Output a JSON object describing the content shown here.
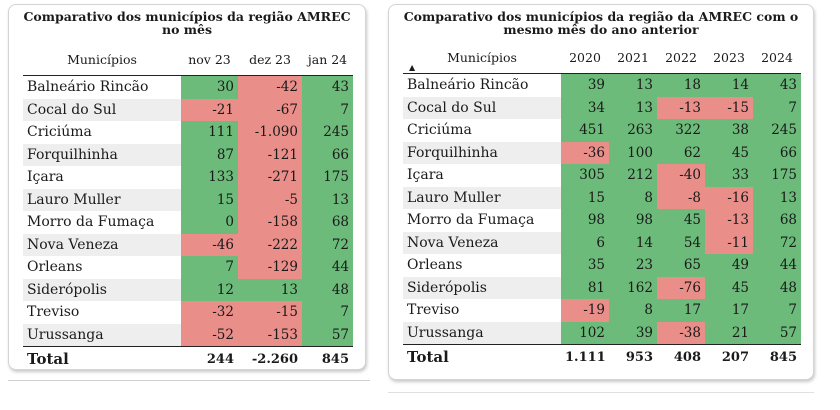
{
  "left": {
    "title": "Comparativo dos municípios da região AMREC\nno mês",
    "headers": [
      "Municípios",
      "nov 23",
      "dez 23",
      "jan 24"
    ],
    "rows": [
      {
        "name": "Balneário Rincão",
        "values": [
          "30",
          "-42",
          "43"
        ]
      },
      {
        "name": "Cocal do Sul",
        "values": [
          "-21",
          "-67",
          "7"
        ]
      },
      {
        "name": "Criciúma",
        "values": [
          "111",
          "-1.090",
          "245"
        ]
      },
      {
        "name": "Forquilhinha",
        "values": [
          "87",
          "-121",
          "66"
        ]
      },
      {
        "name": "Içara",
        "values": [
          "133",
          "-271",
          "175"
        ]
      },
      {
        "name": "Lauro Muller",
        "values": [
          "15",
          "-5",
          "13"
        ]
      },
      {
        "name": "Morro da Fumaça",
        "values": [
          "0",
          "-158",
          "68"
        ]
      },
      {
        "name": "Nova Veneza",
        "values": [
          "-46",
          "-222",
          "72"
        ]
      },
      {
        "name": "Orleans",
        "values": [
          "7",
          "-129",
          "44"
        ]
      },
      {
        "name": "Siderópolis",
        "values": [
          "12",
          "13",
          "48"
        ]
      },
      {
        "name": "Treviso",
        "values": [
          "-32",
          "-15",
          "7"
        ]
      },
      {
        "name": "Urussanga",
        "values": [
          "-52",
          "-153",
          "57"
        ]
      }
    ],
    "total": {
      "label": "Total",
      "values": [
        "244",
        "-2.260",
        "845"
      ]
    }
  },
  "right": {
    "title": "Comparativo dos municípios da região da AMREC com o\nmesmo mês do ano anterior",
    "headers": [
      "Municípios",
      "2020",
      "2021",
      "2022",
      "2023",
      "2024"
    ],
    "rows": [
      {
        "name": "Balneário Rincão",
        "values": [
          "39",
          "13",
          "18",
          "14",
          "43"
        ]
      },
      {
        "name": "Cocal do Sul",
        "values": [
          "34",
          "13",
          "-13",
          "-15",
          "7"
        ]
      },
      {
        "name": "Criciúma",
        "values": [
          "451",
          "263",
          "322",
          "38",
          "245"
        ]
      },
      {
        "name": "Forquilhinha",
        "values": [
          "-36",
          "100",
          "62",
          "45",
          "66"
        ]
      },
      {
        "name": "Içara",
        "values": [
          "305",
          "212",
          "-40",
          "33",
          "175"
        ]
      },
      {
        "name": "Lauro Muller",
        "values": [
          "15",
          "8",
          "-8",
          "-16",
          "13"
        ]
      },
      {
        "name": "Morro da Fumaça",
        "values": [
          "98",
          "98",
          "45",
          "-13",
          "68"
        ]
      },
      {
        "name": "Nova Veneza",
        "values": [
          "6",
          "14",
          "54",
          "-11",
          "72"
        ]
      },
      {
        "name": "Orleans",
        "values": [
          "35",
          "23",
          "65",
          "49",
          "44"
        ]
      },
      {
        "name": "Siderópolis",
        "values": [
          "81",
          "162",
          "-76",
          "45",
          "48"
        ]
      },
      {
        "name": "Treviso",
        "values": [
          "-19",
          "8",
          "17",
          "17",
          "7"
        ]
      },
      {
        "name": "Urussanga",
        "values": [
          "102",
          "39",
          "-38",
          "21",
          "57"
        ]
      }
    ],
    "total": {
      "label": "Total",
      "values": [
        "1.111",
        "953",
        "408",
        "207",
        "845"
      ]
    },
    "sort_icon": "sort-ascending-icon"
  },
  "colors": {
    "positive": "#6cbb7a",
    "negative": "#ea8e8a",
    "zebra": "#eeeeee"
  }
}
